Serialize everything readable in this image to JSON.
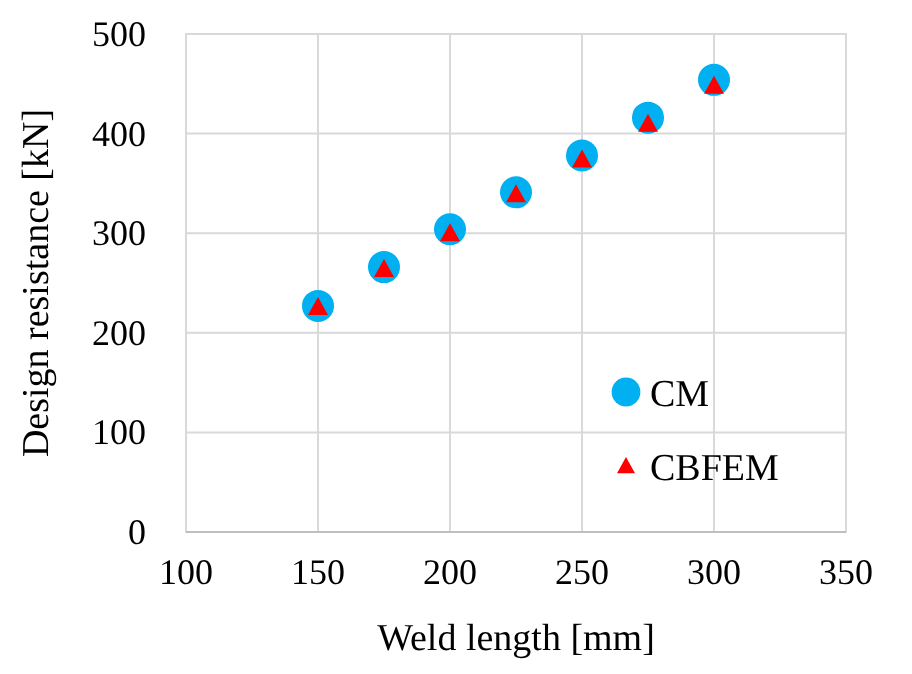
{
  "chart_data": {
    "type": "scatter",
    "xlabel": "Weld length [mm]",
    "ylabel": "Design resistance [kN]",
    "xlim": [
      100,
      350
    ],
    "xticks": [
      100,
      150,
      200,
      250,
      300,
      350
    ],
    "ylim": [
      0,
      500
    ],
    "yticks": [
      0,
      100,
      200,
      300,
      400,
      500
    ],
    "grid": true,
    "legend": "bottom right",
    "series": [
      {
        "name": "CM",
        "color": "#00b0f0",
        "marker": "circle",
        "x": [
          150,
          175,
          200,
          225,
          250,
          275,
          300
        ],
        "values": [
          227,
          266,
          304,
          341,
          378,
          416,
          454
        ]
      },
      {
        "name": "CBFEM",
        "color": "#ff0000",
        "marker": "triangle",
        "x": [
          150,
          175,
          200,
          225,
          250,
          275,
          300
        ],
        "values": [
          226,
          264,
          300,
          339,
          374,
          410,
          448
        ]
      }
    ]
  }
}
